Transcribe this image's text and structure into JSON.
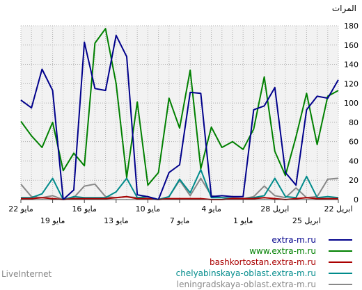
{
  "chart_data": {
    "type": "line",
    "ylabel": "المرات",
    "ylim": [
      0,
      180
    ],
    "yticks": [
      0,
      20,
      40,
      60,
      80,
      100,
      120,
      140,
      160,
      180
    ],
    "grid": true,
    "legend_position": "bottom-right",
    "x_labels_top": [
      {
        "i": 0,
        "text": "22 مايو"
      },
      {
        "i": 6,
        "text": "16 مايو"
      },
      {
        "i": 12,
        "text": "10 مايو"
      },
      {
        "i": 18,
        "text": "4 مايو"
      },
      {
        "i": 24,
        "text": "28 ابريل"
      },
      {
        "i": 30,
        "text": "22 ابريل"
      }
    ],
    "x_labels_bottom": [
      {
        "i": 3,
        "text": "19 مايو"
      },
      {
        "i": 9,
        "text": "13 مايو"
      },
      {
        "i": 15,
        "text": "7 مايو"
      },
      {
        "i": 21,
        "text": "1 مايو"
      },
      {
        "i": 27,
        "text": "25 ابريل"
      }
    ],
    "series": [
      {
        "name": "extra-m.ru",
        "color": "#00008b",
        "values": [
          103,
          95,
          135,
          113,
          0,
          10,
          163,
          115,
          113,
          170,
          148,
          5,
          3,
          0,
          28,
          36,
          111,
          110,
          3,
          4,
          3,
          3,
          93,
          97,
          116,
          28,
          15,
          93,
          107,
          105,
          124
        ]
      },
      {
        "name": "www.extra-m.ru",
        "color": "#008000",
        "values": [
          81,
          66,
          54,
          80,
          30,
          48,
          35,
          162,
          177,
          120,
          23,
          101,
          15,
          28,
          105,
          74,
          134,
          32,
          75,
          54,
          60,
          52,
          73,
          127,
          50,
          25,
          65,
          110,
          57,
          107,
          113
        ]
      },
      {
        "name": "bashkortostan.extra-m.ru",
        "color": "#aa0000",
        "values": [
          1,
          1,
          2,
          1,
          0,
          1,
          1,
          1,
          1,
          2,
          3,
          1,
          1,
          0,
          1,
          1,
          1,
          1,
          0,
          0,
          1,
          1,
          1,
          2,
          1,
          0,
          1,
          2,
          1,
          1,
          1
        ]
      },
      {
        "name": "chelyabinskaya-oblast.extra-m.ru",
        "color": "#008b8b",
        "values": [
          2,
          2,
          6,
          22,
          0,
          3,
          2,
          2,
          2,
          8,
          22,
          2,
          3,
          0,
          3,
          21,
          7,
          31,
          2,
          2,
          1,
          1,
          2,
          4,
          22,
          3,
          2,
          24,
          2,
          3,
          2
        ]
      },
      {
        "name": "leningradskaya-oblast.extra-m.ru",
        "color": "#888888",
        "values": [
          16,
          3,
          2,
          4,
          0,
          2,
          14,
          16,
          3,
          2,
          3,
          2,
          1,
          0,
          3,
          20,
          4,
          22,
          4,
          2,
          2,
          1,
          3,
          14,
          4,
          2,
          12,
          2,
          3,
          21,
          22
        ]
      }
    ]
  },
  "branding": "LiveInternet"
}
